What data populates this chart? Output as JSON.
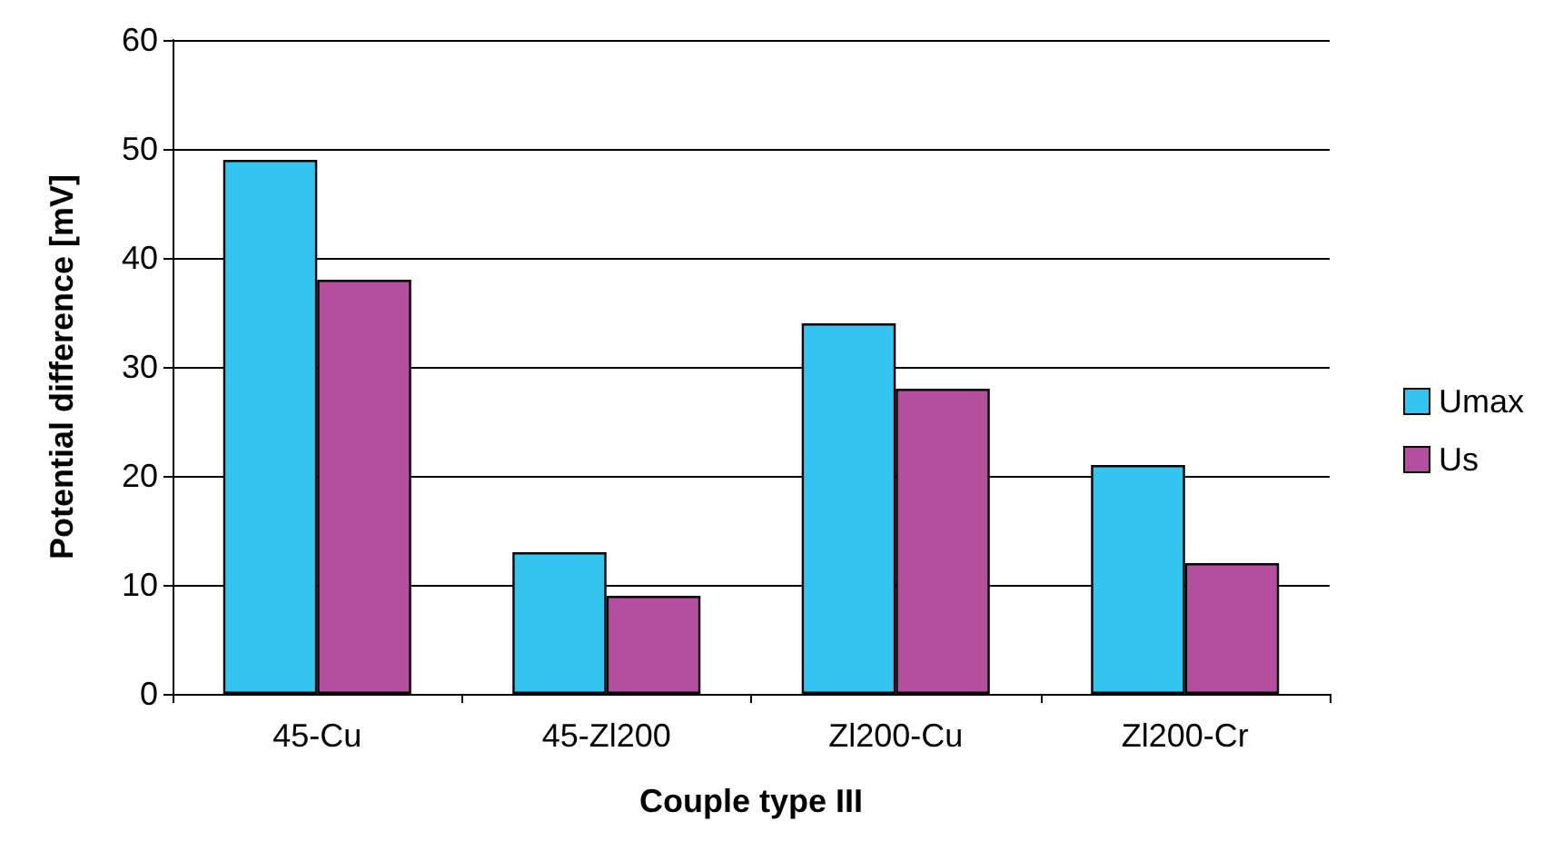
{
  "chart_data": {
    "type": "bar",
    "xlabel": "Couple type III",
    "ylabel": "Potential difference [mV]",
    "categories": [
      "45-Cu",
      "45-Zl200",
      "Zl200-Cu",
      "Zl200-Cr"
    ],
    "series": [
      {
        "name": "Umax",
        "color": "#33c4f0",
        "values": [
          49,
          13,
          34,
          21
        ]
      },
      {
        "name": "Us",
        "color": "#b44f9e",
        "values": [
          38,
          9,
          28,
          12
        ]
      }
    ],
    "ylim": [
      0,
      60
    ],
    "yticks": [
      0,
      10,
      20,
      30,
      40,
      50,
      60
    ],
    "grid": "y",
    "legend": "right"
  }
}
